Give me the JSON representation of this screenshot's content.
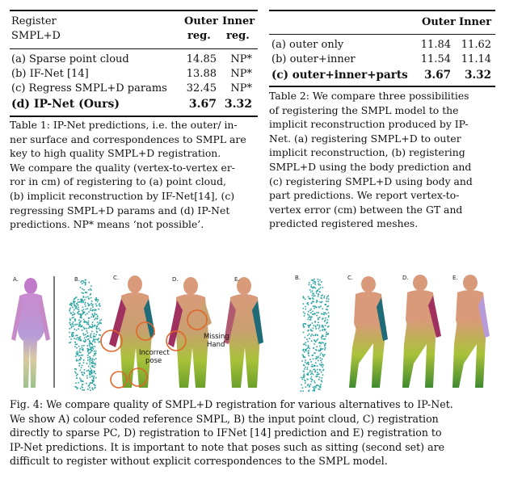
{
  "table1": {
    "header_left": [
      "Register",
      "SMPL+D"
    ],
    "header_outer": [
      "Outer",
      "reg."
    ],
    "header_inner": [
      "Inner",
      "reg."
    ],
    "rows": [
      {
        "label": "(a) Sparse point cloud",
        "outer": "14.85",
        "inner": "NP*"
      },
      {
        "label": "(b) IF-Net [14]",
        "outer": "13.88",
        "inner": "NP*"
      },
      {
        "label": "(c) Regress SMPL+D params",
        "outer": "32.45",
        "inner": "NP*"
      },
      {
        "label": "(d) IP-Net (Ours)",
        "outer": "3.67",
        "inner": "3.32"
      }
    ],
    "caption_lines": [
      "Table 1: IP-Net predictions, i.e. the outer/ in-",
      "ner surface and correspondences to SMPL are",
      "key to high quality SMPL+D registration.",
      "We compare the quality (vertex-to-vertex er-",
      "ror in cm) of registering to (a) point cloud,",
      "(b) implicit reconstruction by IF-Net[14], (c)",
      "regressing SMPL+D params and (d) IP-Net",
      "predictions. NP* means ‘not possible’."
    ]
  },
  "table2": {
    "header_outer": "Outer",
    "header_inner": "Inner",
    "rows": [
      {
        "label": "(a) outer only",
        "outer": "11.84",
        "inner": "11.62"
      },
      {
        "label": "(b) outer+inner",
        "outer": "11.54",
        "inner": "11.14"
      },
      {
        "label": "(c) outer+inner+parts",
        "outer": "3.67",
        "inner": "3.32"
      }
    ],
    "caption_lines": [
      "Table 2: We compare three possibilities",
      "of registering the SMPL model to the",
      "implicit reconstruction produced by IP-",
      "Net. (a) registering SMPL+D to outer",
      "implicit reconstruction, (b) registering",
      "SMPL+D using the body prediction and",
      "(c) registering SMPL+D using body and",
      "part predictions. We report vertex-to-",
      "vertex error (cm) between the GT and",
      "predicted registered meshes."
    ]
  },
  "figure": {
    "labels_set1": [
      "A.",
      "B.",
      "C.",
      "D.",
      "E."
    ],
    "labels_set2": [
      "B.",
      "C.",
      "D.",
      "E."
    ],
    "annotations": {
      "incorrect_pose": [
        "Incorrect",
        "pose"
      ],
      "missing_hand": [
        "Missing",
        "Hand"
      ]
    },
    "caption_lines": [
      "Fig. 4: We compare quality of SMPL+D registration for various alternatives to IP-Net.",
      "We show A) colour coded reference SMPL, B) the input point cloud, C) registration",
      "directly to sparse PC, D) registration to IFNet [14] prediction and E) registration to",
      "IP-Net predictions. It is important to note that poses such as sitting (second set) are",
      "difficult to register without explicit correspondences to the SMPL model."
    ]
  },
  "colors": {
    "annotation_circle": "#e0662a",
    "point_cloud": "#2aa3a0",
    "body_green": "#9bc23a",
    "body_magenta": "#b0307a",
    "body_teal": "#1f6b78",
    "body_peach": "#d99a7a",
    "body_lavender": "#b79ad8"
  }
}
